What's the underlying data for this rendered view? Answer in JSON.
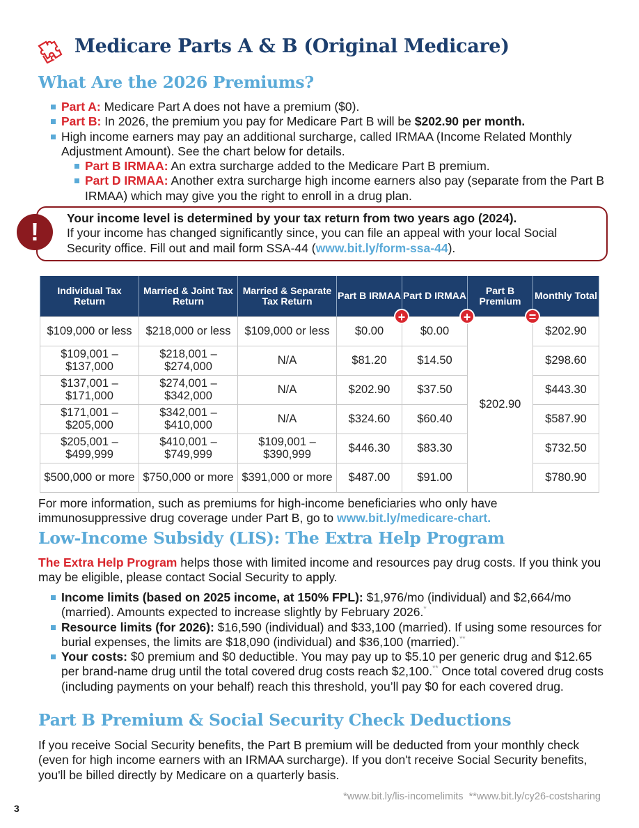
{
  "header": {
    "title": "Medicare Parts A & B (Original Medicare)",
    "icon": "puzzle-icon"
  },
  "premiums": {
    "heading": "What Are the 2026 Premiums?",
    "part_a_label": "Part A:",
    "part_a_text": " Medicare Part A does not have a premium ($0).",
    "part_b_label": "Part B:",
    "part_b_text": " In 2026, the premium you pay for Medicare Part B will be ",
    "part_b_amount": "$202.90 per month.",
    "irmaa_text": "High income earners may pay an additional surcharge, called IRMAA (Income Related Monthly Adjustment Amount). See the chart below for details.",
    "part_b_irmaa_label": "Part B IRMAA:",
    "part_b_irmaa_text": " An extra surcharge added to the Medicare Part B premium.",
    "part_d_irmaa_label": "Part D IRMAA:",
    "part_d_irmaa_text": " Another extra surcharge high income earners also pay (separate from the Part B IRMAA) which may give you the right to enroll in a drug plan."
  },
  "alert": {
    "icon": "exclamation-icon",
    "bold": "Your income level is determined by your tax return from two years ago (2024).",
    "text": "If your income has changed significantly since, you can file an appeal with your local Social Security office. Fill out and mail form SSA-44 (",
    "link": "www.bit.ly/form-ssa-44",
    "end": ")."
  },
  "table": {
    "headers": [
      "Individual Tax Return",
      "Married & Joint Tax Return",
      "Married & Separate Tax Return",
      "Part B IRMAA",
      "Part D IRMAA",
      "Part B Premium",
      "Monthly Total"
    ],
    "operators": [
      "+",
      "+",
      "="
    ],
    "premium": "$202.90",
    "rows": [
      [
        "$109,000 or less",
        "$218,000 or less",
        "$109,000 or less",
        "$0.00",
        "$0.00",
        "$202.90"
      ],
      [
        "$109,001 – $137,000",
        "$218,001 – $274,000",
        "N/A",
        "$81.20",
        "$14.50",
        "$298.60"
      ],
      [
        "$137,001 – $171,000",
        "$274,001 – $342,000",
        "N/A",
        "$202.90",
        "$37.50",
        "$443.30"
      ],
      [
        "$171,001 – $205,000",
        "$342,001 – $410,000",
        "N/A",
        "$324.60",
        "$60.40",
        "$587.90"
      ],
      [
        "$205,001 – $499,999",
        "$410,001 – $749,999",
        "$109,001 – $390,999",
        "$446.30",
        "$83.30",
        "$732.50"
      ],
      [
        "$500,000 or more",
        "$750,000 or more",
        "$391,000 or more",
        "$487.00",
        "$91.00",
        "$780.90"
      ]
    ]
  },
  "more_info": {
    "text": "For more information, such as premiums for high-income beneficiaries who only have immunosuppressive drug coverage under Part B, go to ",
    "link": "www.bit.ly/medicare-chart."
  },
  "lis": {
    "heading": "Low-Income Subsidy (LIS): The Extra Help Program",
    "intro_label": "The Extra Help Program",
    "intro_text": " helps those with limited income and resources pay drug costs. If you think you may be eligible, please contact Social Security to apply.",
    "items": [
      {
        "label": "Income limits (based on 2025 income, at 150% FPL):",
        "text": " $1,976/mo (individual) and $2,664/mo (married). Amounts expected to increase slightly by February 2026.",
        "note": "*"
      },
      {
        "label": "Resource limits (for 2026):",
        "text": " $16,590 (individual) and $33,100 (married). If using some resources for burial expenses, the limits are $18,090 (individual) and $36,100 (married).",
        "note": "**"
      },
      {
        "label": "Your costs:",
        "text": " $0 premium and $0 deductible. You may pay up to $5.10 per generic drug and $12.65 per brand-name drug until the total covered drug costs reach $2,100.",
        "note": "**",
        "text2": " Once total covered drug costs (including payments on your behalf) reach this threshold, you’ll pay $0 for each covered drug."
      }
    ]
  },
  "deductions": {
    "heading": "Part B Premium & Social Security Check Deductions",
    "text": "If you receive Social Security benefits, the Part B premium will be deducted from your monthly check (even for high income earners with an IRMAA surcharge). If you don't receive Social Security benefits, you'll be billed directly by Medicare on a quarterly basis."
  },
  "footnote": "*www.bit.ly/lis-incomelimits  **www.bit.ly/cy26-costsharing",
  "page_number": "3",
  "colors": {
    "navy": "#1d3f6e",
    "light_blue": "#5aaad8",
    "red": "#d9272e",
    "alert_red": "#8b1a1f"
  }
}
